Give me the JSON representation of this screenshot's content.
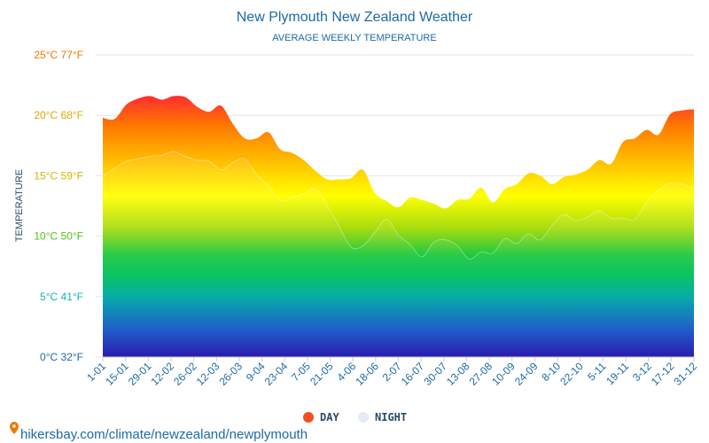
{
  "title": "New Plymouth New Zealand Weather",
  "subtitle": "AVERAGE WEEKLY TEMPERATURE",
  "footer": "hikersbay.com/climate/newzealand/newplymouth",
  "colors": {
    "title": "#1c6aa6",
    "axis_text": "#1c6aa6",
    "grid": "#e6e6e6",
    "night_line": "#ffffff",
    "day_legend": "#f0501e",
    "night_legend": "#e4ebf3",
    "gradient_stops": [
      "#ff1a3c",
      "#ff7a00",
      "#ffd800",
      "#ffff00",
      "#a8dc10",
      "#1ec840",
      "#00c060",
      "#00a8a8",
      "#1e5ac8",
      "#2a1cb0"
    ]
  },
  "chart_data": {
    "type": "area",
    "title": "New Plymouth New Zealand Weather",
    "subtitle": "AVERAGE WEEKLY TEMPERATURE",
    "ylabel": "TEMPERATURE",
    "xlabel": "",
    "ylim": [
      0,
      25
    ],
    "y_ticks": [
      {
        "c": 0,
        "label": "0°C 32°F",
        "color": "#1c6aa6"
      },
      {
        "c": 5,
        "label": "5°C 41°F",
        "color": "#14b4b4"
      },
      {
        "c": 10,
        "label": "10°C 50°F",
        "color": "#52c41a"
      },
      {
        "c": 15,
        "label": "15°C 59°F",
        "color": "#d6b400"
      },
      {
        "c": 20,
        "label": "20°C 68°F",
        "color": "#e0a800"
      },
      {
        "c": 25,
        "label": "25°C 77°F",
        "color": "#f07800"
      }
    ],
    "x_labels": [
      "1-01",
      "15-01",
      "29-01",
      "12-02",
      "26-02",
      "12-03",
      "26-03",
      "9-04",
      "23-04",
      "7-05",
      "21-05",
      "4-06",
      "18-06",
      "2-07",
      "16-07",
      "30-07",
      "13-08",
      "27-08",
      "10-09",
      "24-09",
      "8-10",
      "22-10",
      "5-11",
      "19-11",
      "3-12",
      "17-12",
      "31-12"
    ],
    "grid": true,
    "legend_position": "bottom-center",
    "series": [
      {
        "name": "DAY",
        "values": [
          19.8,
          19.7,
          20.9,
          21.4,
          21.6,
          21.3,
          21.6,
          21.5,
          20.7,
          20.3,
          20.8,
          19.3,
          18.1,
          18.1,
          18.6,
          17.2,
          16.9,
          16.3,
          15.4,
          14.7,
          14.7,
          14.8,
          15.5,
          13.6,
          12.9,
          12.4,
          13.2,
          13.0,
          12.7,
          12.3,
          13.0,
          13.1,
          14.0,
          12.8,
          13.9,
          14.3,
          15.2,
          15.0,
          14.3,
          14.9,
          15.1,
          15.5,
          16.3,
          16.0,
          17.8,
          18.1,
          18.8,
          18.4,
          20.1,
          20.4,
          20.5
        ]
      },
      {
        "name": "NIGHT",
        "values": [
          15.0,
          15.6,
          16.2,
          16.4,
          16.6,
          16.7,
          17.0,
          16.6,
          16.3,
          16.2,
          15.5,
          16.1,
          16.4,
          15.1,
          14.2,
          13.0,
          13.2,
          13.5,
          13.9,
          12.5,
          10.8,
          9.1,
          9.2,
          10.3,
          11.4,
          10.1,
          9.3,
          8.3,
          9.5,
          9.7,
          9.2,
          8.1,
          8.7,
          8.6,
          9.8,
          9.4,
          10.2,
          9.7,
          10.9,
          11.8,
          11.3,
          11.6,
          12.1,
          11.5,
          11.5,
          11.4,
          12.8,
          13.8,
          14.4,
          14.3,
          13.9
        ]
      }
    ]
  }
}
